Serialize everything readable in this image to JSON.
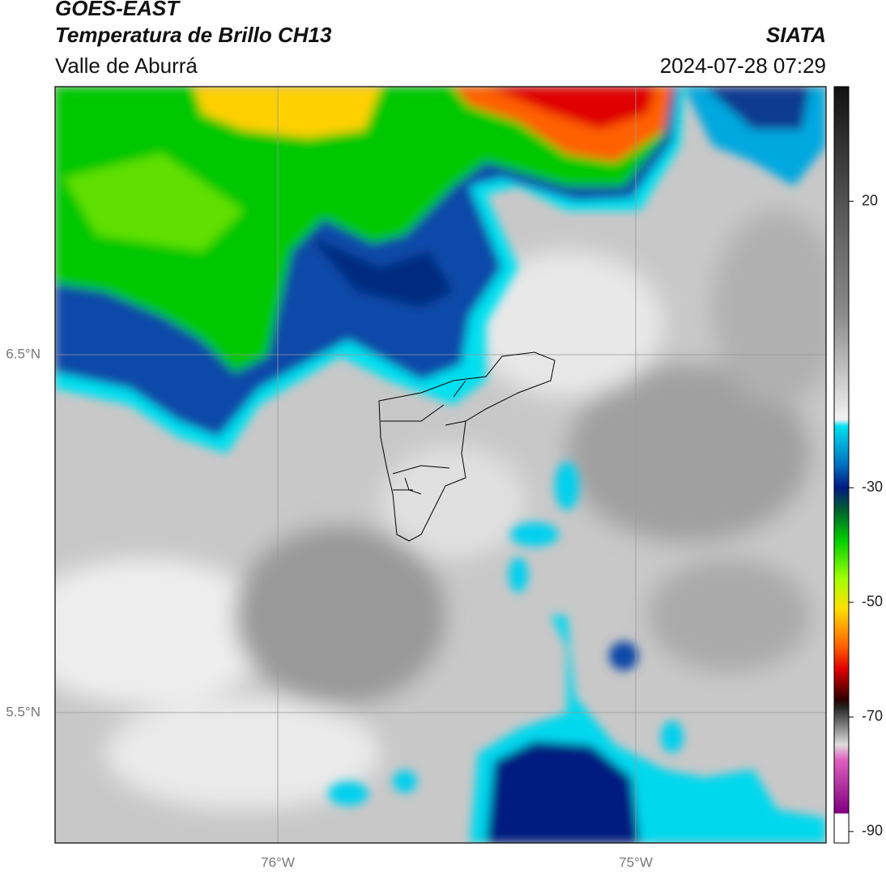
{
  "header": {
    "title": "GOES-EAST",
    "subtitle": "Temperatura de Brillo CH13",
    "region": "Valle de Aburrá",
    "source": "SIATA",
    "datetime": "2024-07-28 07:29"
  },
  "map": {
    "lat_labels": [
      "6.5°N",
      "5.5°N"
    ],
    "lon_labels": [
      "76°W",
      "75°W"
    ]
  },
  "colorbar": {
    "lim": [
      -92,
      40
    ],
    "ticks": [
      20,
      -30,
      -50,
      -70,
      -90
    ]
  }
}
